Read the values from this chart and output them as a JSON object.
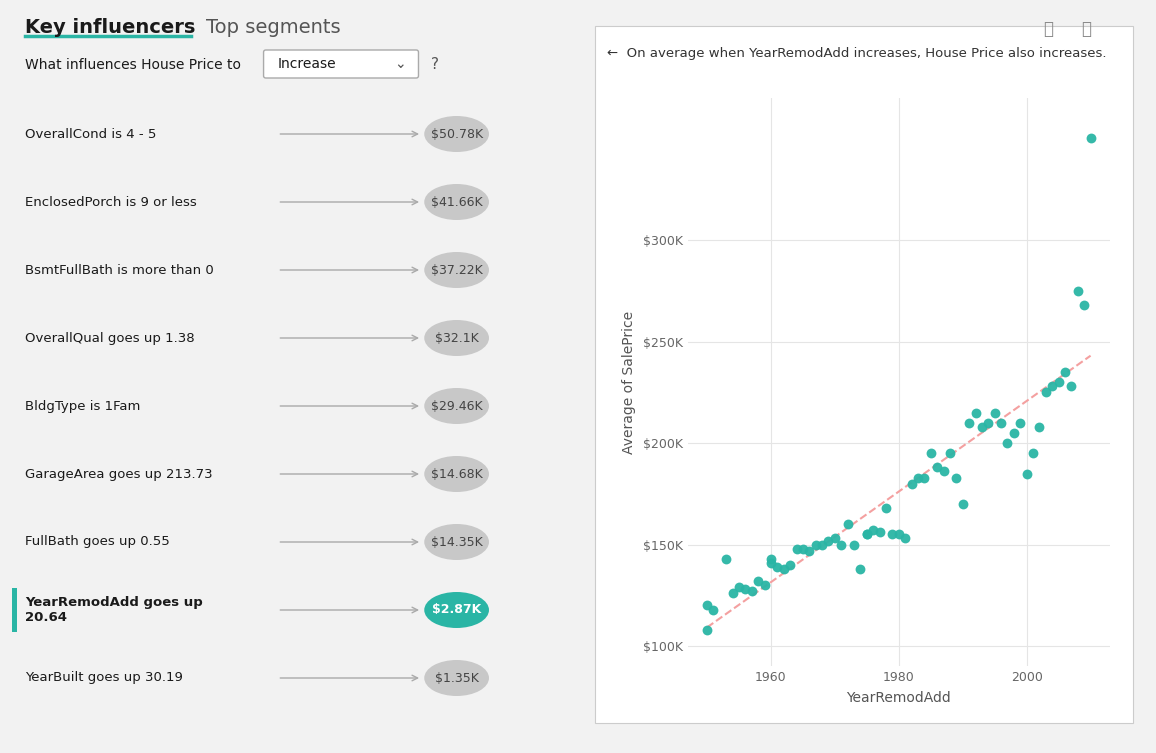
{
  "title_left": "Key influencers",
  "title_right": "Top segments",
  "subtitle": "What influences House Price to",
  "dropdown_text": "Increase",
  "question_mark": "?",
  "influencers": [
    {
      "label": "OverallCond is 4 - 5",
      "value": "$50.78K",
      "highlight": false
    },
    {
      "label": "EnclosedPorch is 9 or less",
      "value": "$41.66K",
      "highlight": false
    },
    {
      "label": "BsmtFullBath is more than 0",
      "value": "$37.22K",
      "highlight": false
    },
    {
      "label": "OverallQual goes up 1.38",
      "value": "$32.1K",
      "highlight": false
    },
    {
      "label": "BldgType is 1Fam",
      "value": "$29.46K",
      "highlight": false
    },
    {
      "label": "GarageArea goes up 213.73",
      "value": "$14.68K",
      "highlight": false
    },
    {
      "label": "FullBath goes up 0.55",
      "value": "$14.35K",
      "highlight": false
    },
    {
      "label": "YearRemodAdd goes up\n20.64",
      "value": "$2.87K",
      "highlight": true
    },
    {
      "label": "YearBuilt goes up 30.19",
      "value": "$1.35K",
      "highlight": false
    }
  ],
  "scatter_title": "On average when YearRemodAdd increases, House Price also increases.",
  "scatter_xlabel": "YearRemodAdd",
  "scatter_ylabel": "Average of SalePrice",
  "scatter_color": "#2ab5a5",
  "trendline_color": "#f4a0a0",
  "scatter_points": [
    [
      1950,
      108000
    ],
    [
      1950,
      120000
    ],
    [
      1951,
      118000
    ],
    [
      1953,
      143000
    ],
    [
      1954,
      126000
    ],
    [
      1955,
      129000
    ],
    [
      1956,
      128000
    ],
    [
      1957,
      127000
    ],
    [
      1958,
      132000
    ],
    [
      1959,
      130000
    ],
    [
      1960,
      143000
    ],
    [
      1960,
      141000
    ],
    [
      1961,
      139000
    ],
    [
      1962,
      138000
    ],
    [
      1963,
      140000
    ],
    [
      1964,
      148000
    ],
    [
      1965,
      148000
    ],
    [
      1966,
      147000
    ],
    [
      1967,
      150000
    ],
    [
      1968,
      150000
    ],
    [
      1969,
      152000
    ],
    [
      1970,
      153000
    ],
    [
      1971,
      150000
    ],
    [
      1972,
      160000
    ],
    [
      1973,
      150000
    ],
    [
      1974,
      138000
    ],
    [
      1975,
      155000
    ],
    [
      1975,
      155000
    ],
    [
      1976,
      157000
    ],
    [
      1977,
      156000
    ],
    [
      1978,
      168000
    ],
    [
      1979,
      155000
    ],
    [
      1980,
      155000
    ],
    [
      1981,
      153000
    ],
    [
      1982,
      180000
    ],
    [
      1983,
      183000
    ],
    [
      1984,
      183000
    ],
    [
      1985,
      195000
    ],
    [
      1986,
      188000
    ],
    [
      1987,
      186000
    ],
    [
      1988,
      195000
    ],
    [
      1989,
      183000
    ],
    [
      1990,
      170000
    ],
    [
      1991,
      210000
    ],
    [
      1992,
      215000
    ],
    [
      1993,
      208000
    ],
    [
      1994,
      210000
    ],
    [
      1995,
      215000
    ],
    [
      1996,
      210000
    ],
    [
      1997,
      200000
    ],
    [
      1998,
      205000
    ],
    [
      1999,
      210000
    ],
    [
      2000,
      185000
    ],
    [
      2001,
      195000
    ],
    [
      2002,
      208000
    ],
    [
      2003,
      225000
    ],
    [
      2004,
      228000
    ],
    [
      2005,
      230000
    ],
    [
      2006,
      235000
    ],
    [
      2007,
      228000
    ],
    [
      2008,
      275000
    ],
    [
      2009,
      268000
    ],
    [
      2010,
      350000
    ]
  ],
  "yticks": [
    100000,
    150000,
    200000,
    250000,
    300000
  ],
  "ytick_labels": [
    "$100K",
    "$150K",
    "$200K",
    "$250K",
    "$300K"
  ],
  "xticks": [
    1960,
    1980,
    2000
  ],
  "xlim": [
    1947,
    2013
  ],
  "ylim": [
    90000,
    370000
  ],
  "bg_color": "#f2f2f2",
  "circle_color_normal": "#c8c8c8",
  "circle_color_highlight": "#2ab5a5",
  "text_color_normal": "#444444",
  "text_color_highlight": "#ffffff",
  "teal_color": "#2ab5a5",
  "underline_color": "#2ab5a5"
}
